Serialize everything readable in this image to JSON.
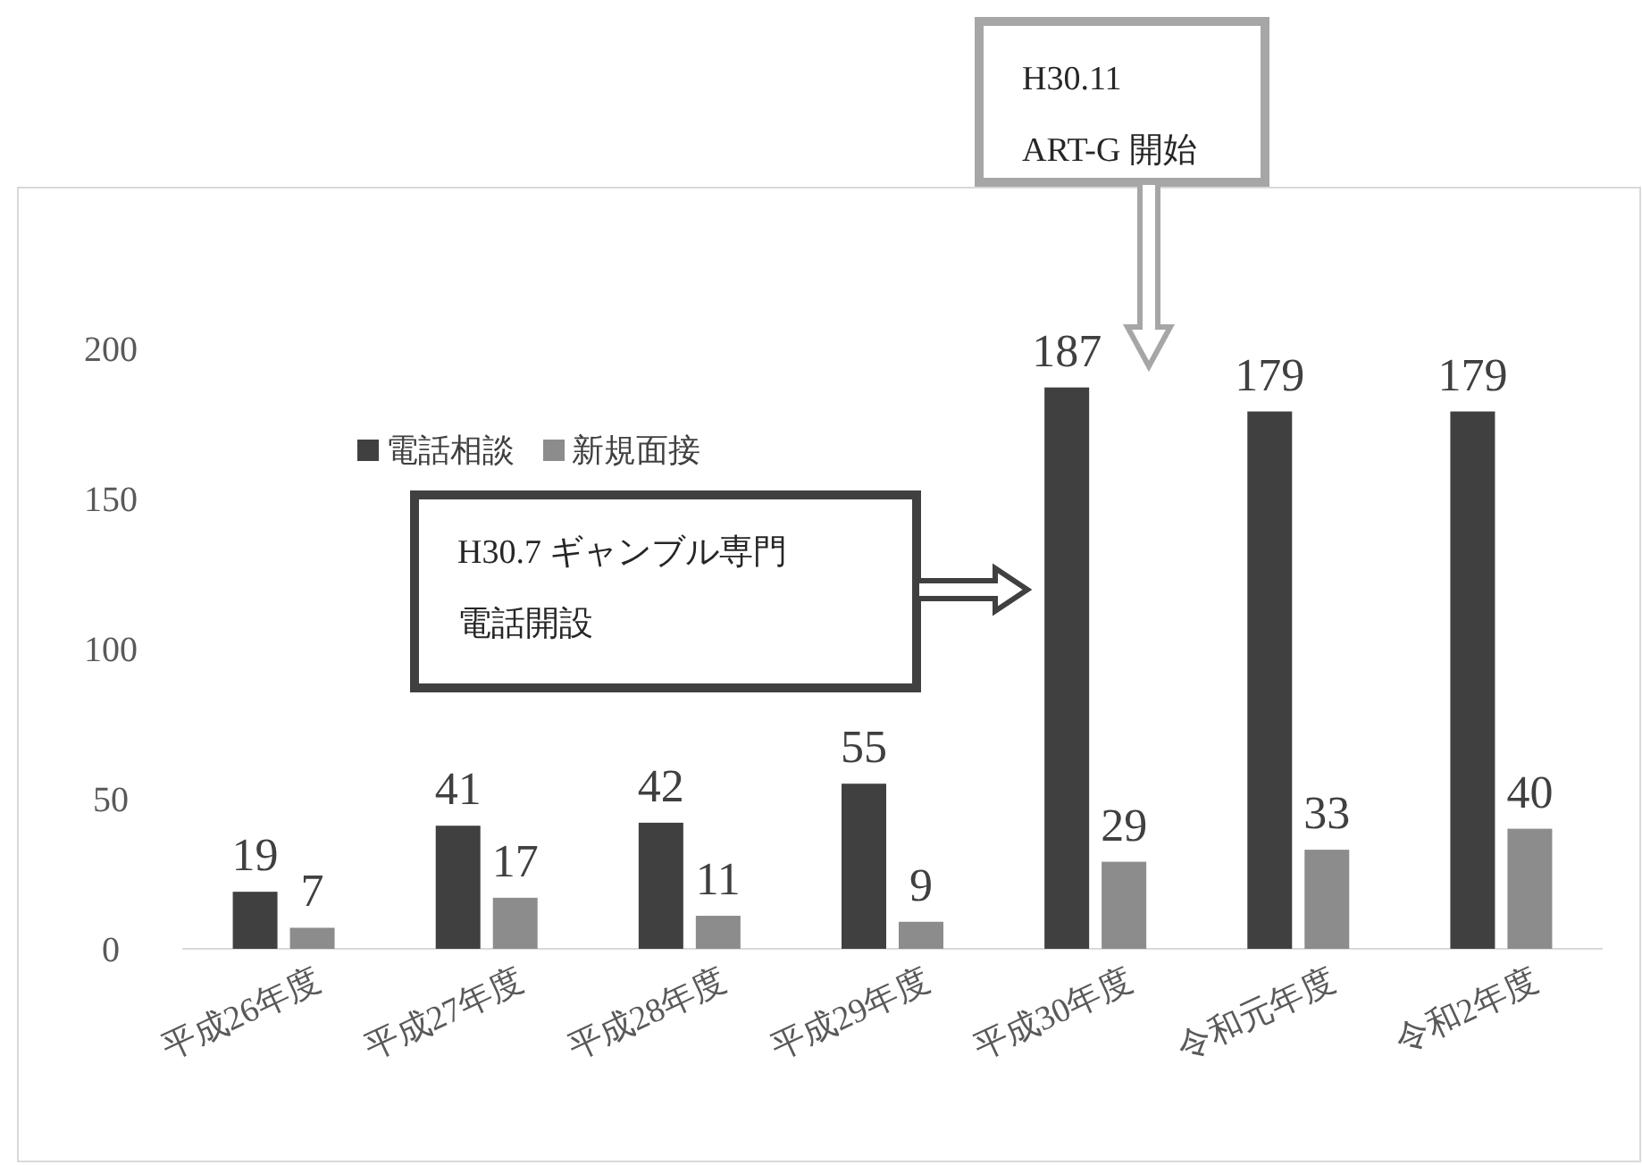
{
  "chart_data": {
    "type": "bar",
    "categories": [
      "平成26年度",
      "平成27年度",
      "平成28年度",
      "平成29年度",
      "平成30年度",
      "令和元年度",
      "令和2年度"
    ],
    "series": [
      {
        "name": "電話相談",
        "color": "#404040",
        "values": [
          19,
          41,
          42,
          55,
          187,
          179,
          179
        ]
      },
      {
        "name": "新規面接",
        "color": "#8c8c8c",
        "values": [
          7,
          17,
          11,
          9,
          29,
          33,
          40
        ]
      }
    ],
    "ylim": [
      0,
      200
    ],
    "yticks": [
      0,
      50,
      100,
      150,
      200
    ],
    "data_labels": true,
    "legend": "top",
    "grid": false,
    "annotations": [
      "H30.7 ギャンブル専門",
      "電話開設",
      "H30.11",
      "ART-G 開始"
    ]
  }
}
